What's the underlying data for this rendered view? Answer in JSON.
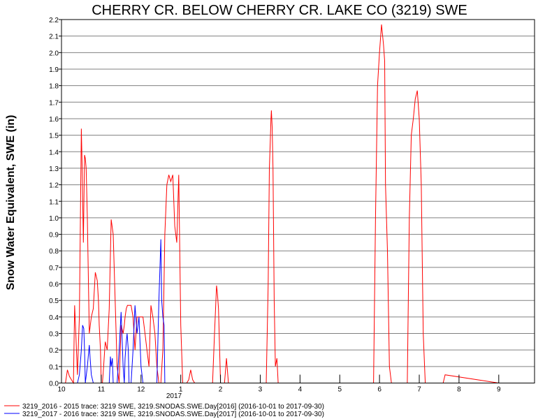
{
  "chart_data": {
    "type": "line",
    "title": "CHERRY CR. BELOW CHERRY CR. LAKE CO (3219) SWE",
    "xlabel": "",
    "ylabel": "Snow Water Equivalent, SWE (in)",
    "ylim": [
      0,
      2.2
    ],
    "y_ticks": [
      "0.0",
      "0.1",
      "0.2",
      "0.3",
      "0.4",
      "0.5",
      "0.6",
      "0.7",
      "0.8",
      "0.9",
      "1.0",
      "1.1",
      "1.2",
      "1.3",
      "1.4",
      "1.5",
      "1.6",
      "1.7",
      "1.8",
      "1.9",
      "2.0",
      "2.1",
      "2.2"
    ],
    "x_tick_labels": [
      "10",
      "11",
      "12",
      "1",
      "2",
      "3",
      "4",
      "5",
      "6",
      "7",
      "8",
      "9"
    ],
    "x_year_label": "2017",
    "grid": "horizontal",
    "legend_position": "bottom",
    "series": [
      {
        "name": "3219_2016 - 2015 trace: 3219 SWE, 3219.SNODAS.SWE.Day[2016] (2016-10-01 to 2017-09-30)",
        "color": "#ff0000",
        "x": [
          1.1,
          1.15,
          1.2,
          1.3,
          1.33,
          1.36,
          1.4,
          1.45,
          1.5,
          1.52,
          1.55,
          1.58,
          1.6,
          1.62,
          1.65,
          1.7,
          1.75,
          1.8,
          1.85,
          1.9,
          1.93,
          1.95,
          1.98,
          2.0,
          2.03,
          2.06,
          2.1,
          2.15,
          2.2,
          2.25,
          2.3,
          2.35,
          2.4,
          2.45,
          2.5,
          2.55,
          2.58,
          2.6,
          2.63,
          2.66,
          2.7,
          2.75,
          2.8,
          2.85,
          2.9,
          2.95,
          3.0,
          3.05,
          3.1,
          3.15,
          3.2,
          3.25,
          3.3,
          3.35,
          3.4,
          3.45,
          3.5,
          3.55,
          3.6,
          3.65,
          3.7,
          3.75,
          3.8,
          3.85,
          3.9,
          3.95,
          4.0,
          4.05,
          4.1,
          4.15,
          4.2,
          4.25,
          4.3,
          4.35,
          4.5,
          4.6,
          4.7,
          4.8,
          4.85,
          4.9,
          4.92,
          4.95,
          5.0,
          5.1,
          5.15,
          5.2,
          5.3,
          5.5,
          5.7,
          5.73,
          5.75,
          5.78,
          5.8,
          5.85,
          5.9,
          5.92,
          5.95,
          5.98,
          6.05,
          6.1,
          6.15,
          6.2,
          6.23,
          6.25,
          6.27,
          6.28,
          6.3,
          6.32,
          6.35,
          6.38,
          6.42,
          6.45,
          6.5,
          6.55,
          6.6,
          6.65,
          7.0,
          7.4,
          7.5,
          7.6,
          7.8,
          7.82,
          7.85,
          7.88,
          7.9,
          7.92,
          7.95,
          8.0,
          8.02,
          8.06,
          8.1,
          8.3,
          8.8,
          8.85,
          8.9,
          8.95,
          9.0,
          9.05,
          9.1,
          9.13,
          9.15,
          9.2,
          9.25,
          9.3,
          9.4,
          9.7,
          9.75,
          9.8,
          9.85,
          9.9,
          9.95,
          10.0,
          10.05,
          10.1,
          10.15,
          10.5,
          10.6,
          10.65,
          12.0
        ],
        "values": [
          0,
          0.08,
          0.04,
          0,
          0.47,
          0.3,
          0.05,
          0.4,
          1.54,
          1.3,
          0.85,
          1.38,
          1.36,
          1.3,
          1.0,
          0.3,
          0.4,
          0.45,
          0.67,
          0.62,
          0.5,
          0.35,
          0.2,
          0,
          0,
          0.1,
          0.25,
          0.2,
          0.45,
          0.99,
          0.9,
          0.5,
          0.1,
          0,
          0.35,
          0.3,
          0.35,
          0.4,
          0.45,
          0.47,
          0.47,
          0.47,
          0.4,
          0.2,
          0.4,
          0.4,
          0.4,
          0.4,
          0.3,
          0.2,
          0.1,
          0.47,
          0.4,
          0.3,
          0.1,
          0,
          0,
          0.2,
          0.9,
          1.2,
          1.26,
          1.22,
          1.26,
          0.95,
          0.85,
          1.26,
          0.35,
          0,
          0,
          0,
          0.02,
          0.08,
          0.02,
          0,
          0,
          0,
          0,
          0,
          0.3,
          0.59,
          0.55,
          0.45,
          0,
          0,
          0.15,
          0,
          0,
          0,
          0,
          0,
          0,
          0,
          0,
          0,
          0,
          0,
          0,
          0,
          0,
          0,
          0,
          0.6,
          1.3,
          1.45,
          1.6,
          1.65,
          1.55,
          1.3,
          0.5,
          0.1,
          0.15,
          0,
          0,
          0,
          0,
          0,
          0,
          0,
          0,
          0,
          0,
          0,
          0,
          0,
          0,
          0,
          0,
          0,
          0,
          0,
          0,
          0,
          0,
          0,
          1.0,
          1.8,
          2.0,
          2.17,
          2.05,
          1.95,
          1.2,
          0.8,
          0.1,
          0,
          0,
          0,
          1.0,
          1.5,
          1.6,
          1.72,
          1.77,
          1.6,
          1.2,
          0.3,
          0,
          0,
          0,
          0.05,
          0
        ]
      },
      {
        "name": "3219_2017 - 2016 trace: 3219 SWE, 3219.SNODAS.SWE.Day[2017] (2016-10-01 to 2017-09-30)",
        "color": "#0000ff",
        "x": [
          1.4,
          1.45,
          1.5,
          1.53,
          1.56,
          1.58,
          1.6,
          1.65,
          1.7,
          1.72,
          1.75,
          1.8,
          1.85,
          2.2,
          2.23,
          2.25,
          2.28,
          2.3,
          2.4,
          2.45,
          2.5,
          2.55,
          2.58,
          2.6,
          2.63,
          2.65,
          2.68,
          2.7,
          2.75,
          2.8,
          2.85,
          2.9,
          2.95,
          3.0,
          3.05,
          3.1,
          3.15,
          3.2,
          3.25,
          3.3,
          3.4,
          3.45,
          3.5,
          3.52,
          3.55,
          3.58,
          3.6,
          3.65,
          3.7,
          3.75,
          12.0
        ],
        "values": [
          0,
          0.05,
          0.2,
          0.35,
          0.33,
          0.2,
          0,
          0.1,
          0.23,
          0.15,
          0.05,
          0,
          0,
          0,
          0.16,
          0.1,
          0.15,
          0,
          0,
          0.2,
          0.43,
          0.1,
          0,
          0.15,
          0.25,
          0.3,
          0.2,
          0,
          0,
          0.2,
          0.47,
          0.3,
          0.4,
          0.1,
          0,
          0,
          0,
          0,
          0,
          0,
          0,
          0.5,
          0.87,
          0.5,
          0.4,
          0.35,
          0,
          0,
          0,
          0,
          0
        ]
      }
    ]
  }
}
